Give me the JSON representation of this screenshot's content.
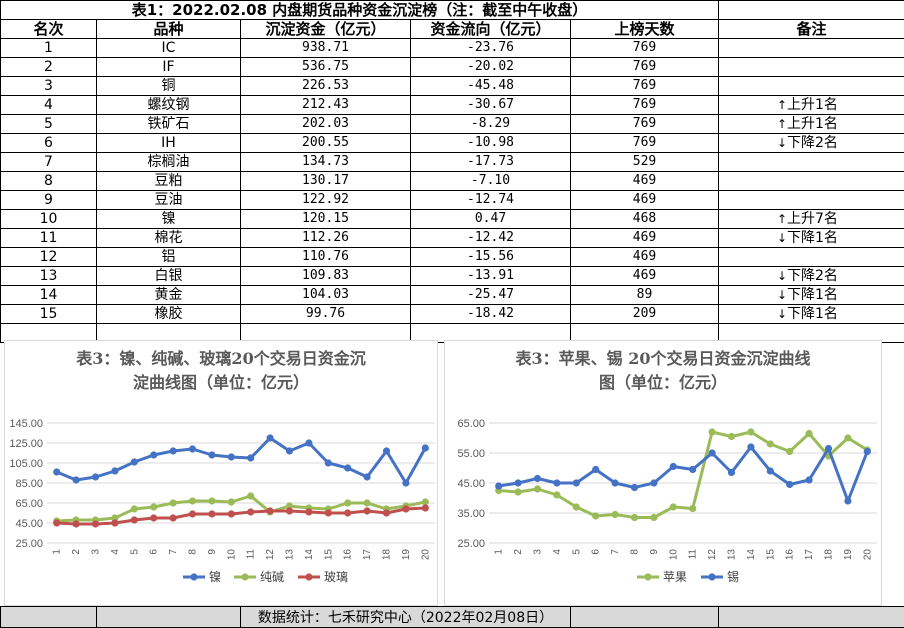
{
  "title": "表1：2022.02.08 内盘期货品种资金沉淀榜（注：截至中午收盘）",
  "headers": [
    "名次",
    "品种",
    "沉淀资金（亿元）",
    "资金流向（亿元）",
    "上榜天数",
    "备注"
  ],
  "rows": [
    {
      "rank": "1",
      "name": "IC",
      "capital": "938.71",
      "flow": "-23.76",
      "days": "769",
      "note": "",
      "arrow": ""
    },
    {
      "rank": "2",
      "name": "IF",
      "capital": "536.75",
      "flow": "-20.02",
      "days": "769",
      "note": "",
      "arrow": ""
    },
    {
      "rank": "3",
      "name": "铜",
      "capital": "226.53",
      "flow": "-45.48",
      "days": "769",
      "note": "",
      "arrow": ""
    },
    {
      "rank": "4",
      "name": "螺纹钢",
      "capital": "212.43",
      "flow": "-30.67",
      "days": "769",
      "note": "上升1名",
      "arrow": "↑"
    },
    {
      "rank": "5",
      "name": "铁矿石",
      "capital": "202.03",
      "flow": "-8.29",
      "days": "769",
      "note": "上升1名",
      "arrow": "↑"
    },
    {
      "rank": "6",
      "name": "IH",
      "capital": "200.55",
      "flow": "-10.98",
      "days": "769",
      "note": "下降2名",
      "arrow": "↓"
    },
    {
      "rank": "7",
      "name": "棕榈油",
      "capital": "134.73",
      "flow": "-17.73",
      "days": "529",
      "note": "",
      "arrow": ""
    },
    {
      "rank": "8",
      "name": "豆粕",
      "capital": "130.17",
      "flow": "-7.10",
      "days": "469",
      "note": "",
      "arrow": ""
    },
    {
      "rank": "9",
      "name": "豆油",
      "capital": "122.92",
      "flow": "-12.74",
      "days": "469",
      "note": "",
      "arrow": ""
    },
    {
      "rank": "10",
      "name": "镍",
      "capital": "120.15",
      "flow": "0.47",
      "days": "468",
      "note": "上升7名",
      "arrow": "↑"
    },
    {
      "rank": "11",
      "name": "棉花",
      "capital": "112.26",
      "flow": "-12.42",
      "days": "469",
      "note": "下降1名",
      "arrow": "↓"
    },
    {
      "rank": "12",
      "name": "铝",
      "capital": "110.76",
      "flow": "-15.56",
      "days": "469",
      "note": "",
      "arrow": ""
    },
    {
      "rank": "13",
      "name": "白银",
      "capital": "109.83",
      "flow": "-13.91",
      "days": "469",
      "note": "下降2名",
      "arrow": "↓"
    },
    {
      "rank": "14",
      "name": "黄金",
      "capital": "104.03",
      "flow": "-25.47",
      "days": "89",
      "note": "下降1名",
      "arrow": "↓"
    },
    {
      "rank": "15",
      "name": "橡胶",
      "capital": "99.76",
      "flow": "-18.42",
      "days": "209",
      "note": "下降1名",
      "arrow": "↓"
    }
  ],
  "footer": "数据统计：七禾研究中心（2022年02月08日）",
  "chart_data": [
    {
      "type": "line",
      "title_lines": [
        "表3：镍、纯碱、玻璃20个交易日资金沉",
        "淀曲线图（单位：亿元）"
      ],
      "x": [
        "1",
        "2",
        "3",
        "4",
        "5",
        "6",
        "7",
        "8",
        "9",
        "10",
        "11",
        "12",
        "13",
        "14",
        "15",
        "16",
        "17",
        "18",
        "19",
        "20"
      ],
      "yticks": [
        "25.00",
        "45.00",
        "65.00",
        "85.00",
        "105.00",
        "125.00",
        "145.00"
      ],
      "ylim": [
        25,
        145
      ],
      "grid": true,
      "legend": "bottom",
      "series": [
        {
          "name": "镍",
          "color": "#4472c4",
          "values": [
            96,
            88,
            91,
            97,
            106,
            113,
            117,
            119,
            113,
            111,
            110,
            130,
            117,
            125,
            105,
            100,
            91,
            117,
            85,
            120
          ]
        },
        {
          "name": "纯碱",
          "color": "#9bbb59",
          "values": [
            47,
            48,
            48,
            50,
            59,
            61,
            65,
            67,
            67,
            66,
            72,
            56,
            62,
            60,
            59,
            65,
            65,
            59,
            62,
            66
          ]
        },
        {
          "name": "玻璃",
          "color": "#c0504d",
          "values": [
            45,
            44,
            44,
            45,
            48,
            50,
            50,
            54,
            54,
            54,
            56,
            57,
            57,
            56,
            55,
            55,
            57,
            55,
            59,
            60
          ]
        }
      ]
    },
    {
      "type": "line",
      "title_lines": [
        "表3：苹果、锡 20个交易日资金沉淀曲线",
        "图（单位：亿元）"
      ],
      "x": [
        "1",
        "2",
        "3",
        "4",
        "5",
        "6",
        "7",
        "8",
        "9",
        "10",
        "11",
        "12",
        "13",
        "14",
        "15",
        "16",
        "17",
        "18",
        "19",
        "20"
      ],
      "yticks": [
        "25.00",
        "35.00",
        "45.00",
        "55.00",
        "65.00"
      ],
      "ylim": [
        25,
        65
      ],
      "grid": true,
      "legend": "bottom",
      "series": [
        {
          "name": "苹果",
          "color": "#9bbb59",
          "values": [
            42.5,
            42,
            43,
            41,
            37,
            34,
            34.5,
            33.5,
            33.5,
            37,
            36.5,
            62,
            60.5,
            62,
            58,
            55.5,
            61.5,
            54,
            60,
            56
          ]
        },
        {
          "name": "锡",
          "color": "#4472c4",
          "values": [
            44,
            45,
            46.5,
            45,
            45,
            49.5,
            45,
            43.5,
            45,
            50.5,
            49.5,
            55,
            48.5,
            57,
            49,
            44.5,
            46,
            56.5,
            39,
            55.5
          ]
        }
      ]
    }
  ]
}
